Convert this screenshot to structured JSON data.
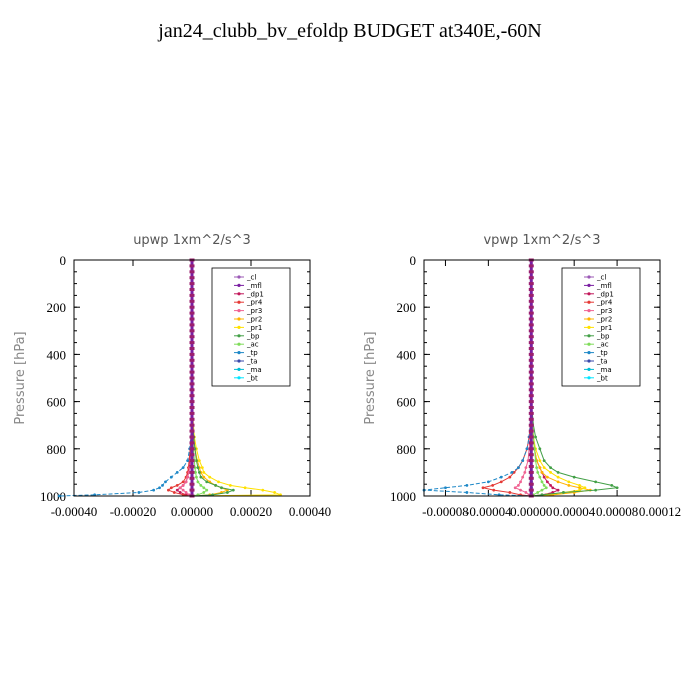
{
  "title": "jan24_clubb_bv_efoldp  BUDGET at340E,-60N",
  "chart_data": [
    {
      "type": "line",
      "title": "upwp   1xm^2/s^3",
      "ylabel": "Pressure [hPa]",
      "xlabel": "",
      "xlim": [
        -0.0004,
        0.0004
      ],
      "ylim": [
        1000,
        0
      ],
      "x_ticks": [
        "-0.00040",
        "-0.00020",
        "0.00000",
        "0.00020",
        "0.00040"
      ],
      "y_ticks": [
        "0",
        "200",
        "400",
        "600",
        "800",
        "1000"
      ],
      "legend": [
        "_cl",
        "_mfl",
        "_dp1",
        "_pr4",
        "_pr3",
        "_pr2",
        "_pr1",
        "_bp",
        "_ac",
        "_tp",
        "_ta",
        "_ma",
        "_bt"
      ],
      "legend_position": "top-right",
      "colors": [
        "#9b59b6",
        "#7a1fa2",
        "#c2185b",
        "#e53935",
        "#f06292",
        "#ffb300",
        "#ffe100",
        "#43a047",
        "#7fdc5a",
        "#1e88c7",
        "#3949ab",
        "#00bcd4",
        "#00e5ff"
      ],
      "pressure": [
        0,
        100,
        200,
        300,
        400,
        500,
        600,
        700,
        750,
        800,
        850,
        880,
        900,
        920,
        940,
        955,
        965,
        975,
        985,
        995,
        1000
      ],
      "series": [
        {
          "name": "_cl",
          "values": [
            0,
            0,
            0,
            0,
            0,
            0,
            0,
            0,
            0,
            0,
            0,
            0,
            0,
            0,
            0,
            0,
            0,
            0,
            0,
            0,
            0
          ]
        },
        {
          "name": "_mfl",
          "values": [
            0,
            0,
            0,
            0,
            0,
            0,
            0,
            0,
            0,
            0,
            0,
            0,
            0,
            0,
            0,
            0,
            0,
            0,
            0,
            0,
            0
          ]
        },
        {
          "name": "_dp1",
          "values": [
            0,
            0,
            0,
            0,
            0,
            0,
            0,
            -2e-06,
            -3e-06,
            -5e-06,
            -8e-06,
            -1e-05,
            -1.2e-05,
            -1.5e-05,
            -2e-05,
            -3e-05,
            -4e-05,
            -5e-05,
            -4e-05,
            -2e-05,
            0
          ]
        },
        {
          "name": "_pr4",
          "values": [
            0,
            0,
            0,
            0,
            0,
            0,
            0,
            -2e-06,
            -4e-06,
            -6e-06,
            -1e-05,
            -1.2e-05,
            -1.5e-05,
            -2e-05,
            -3e-05,
            -5e-05,
            -7e-05,
            -8e-05,
            -6e-05,
            -3e-05,
            0
          ]
        },
        {
          "name": "_pr3",
          "values": [
            0,
            0,
            0,
            0,
            0,
            0,
            0,
            -1e-06,
            -2e-06,
            -3e-06,
            -5e-06,
            -8e-06,
            -1e-05,
            -1.5e-05,
            -2e-05,
            -3e-05,
            -4e-05,
            -3e-05,
            -2e-05,
            -1e-05,
            0
          ]
        },
        {
          "name": "_pr2",
          "values": [
            0,
            0,
            0,
            0,
            0,
            0,
            0,
            3e-06,
            5e-06,
            1e-05,
            1.8e-05,
            2.5e-05,
            3e-05,
            4e-05,
            6e-05,
            8e-05,
            0.0001,
            0.00012,
            0.0001,
            6e-05,
            0
          ]
        },
        {
          "name": "_pr1",
          "values": [
            0,
            0,
            0,
            0,
            0,
            0,
            0,
            5e-06,
            8e-06,
            1.5e-05,
            2.5e-05,
            3.5e-05,
            4e-05,
            6e-05,
            9e-05,
            0.00013,
            0.00018,
            0.00024,
            0.00028,
            0.0003,
            0
          ]
        },
        {
          "name": "_bp",
          "values": [
            0,
            0,
            0,
            0,
            0,
            0,
            0,
            3e-06,
            6e-06,
            1e-05,
            1.5e-05,
            2e-05,
            2.5e-05,
            3e-05,
            5e-05,
            8e-05,
            0.0001,
            0.00014,
            0.00012,
            7e-05,
            0
          ]
        },
        {
          "name": "_ac",
          "values": [
            0,
            0,
            0,
            0,
            0,
            0,
            0,
            2e-06,
            3e-06,
            5e-06,
            8e-06,
            1e-05,
            1.2e-05,
            1.5e-05,
            2e-05,
            3e-05,
            4e-05,
            5e-05,
            4e-05,
            2e-05,
            0
          ]
        },
        {
          "name": "_tp",
          "values": [
            0,
            0,
            0,
            0,
            0,
            0,
            0,
            -2e-06,
            -4e-06,
            -8e-06,
            -1.5e-05,
            -3e-05,
            -5e-05,
            -7e-05,
            -9e-05,
            -0.0001,
            -0.00011,
            -0.00013,
            -0.00018,
            -0.00033,
            -0.00045
          ]
        },
        {
          "name": "_ta",
          "values": [
            0,
            0,
            0,
            0,
            0,
            0,
            0,
            0,
            0,
            0,
            0,
            0,
            0,
            0,
            0,
            0,
            0,
            0,
            0,
            0,
            0
          ]
        },
        {
          "name": "_ma",
          "values": [
            0,
            0,
            0,
            0,
            0,
            0,
            0,
            0,
            0,
            0,
            0,
            0,
            0,
            0,
            0,
            0,
            0,
            0,
            0,
            0,
            0
          ]
        },
        {
          "name": "_bt",
          "values": [
            0,
            0,
            0,
            0,
            0,
            0,
            0,
            0,
            0,
            0,
            0,
            0,
            0,
            0,
            0,
            0,
            0,
            0,
            0,
            0,
            0
          ]
        }
      ]
    },
    {
      "type": "line",
      "title": "vpwp   1xm^2/s^3",
      "ylabel": "Pressure [hPa]",
      "xlabel": "",
      "xlim": [
        -0.0001,
        0.00012
      ],
      "ylim": [
        1000,
        0
      ],
      "x_ticks": [
        "-0.00008",
        "-0.00004",
        "0.00000",
        "0.00004",
        "0.00008",
        "0.00012"
      ],
      "y_ticks": [
        "0",
        "200",
        "400",
        "600",
        "800",
        "1000"
      ],
      "legend": [
        "_cl",
        "_mfl",
        "_dp1",
        "_pr4",
        "_pr3",
        "_pr2",
        "_pr1",
        "_bp",
        "_ac",
        "_tp",
        "_ta",
        "_ma",
        "_bt"
      ],
      "legend_position": "top-right",
      "colors": [
        "#9b59b6",
        "#7a1fa2",
        "#c2185b",
        "#e53935",
        "#f06292",
        "#ffb300",
        "#ffe100",
        "#43a047",
        "#7fdc5a",
        "#1e88c7",
        "#3949ab",
        "#00bcd4",
        "#00e5ff"
      ],
      "pressure": [
        0,
        100,
        200,
        300,
        400,
        500,
        600,
        700,
        750,
        800,
        850,
        880,
        900,
        920,
        940,
        955,
        965,
        975,
        985,
        995,
        1000
      ],
      "series": [
        {
          "name": "_cl",
          "values": [
            0,
            0,
            0,
            0,
            0,
            0,
            0,
            0,
            0,
            0,
            0,
            0,
            0,
            0,
            0,
            0,
            0,
            0,
            0,
            0,
            0
          ]
        },
        {
          "name": "_mfl",
          "values": [
            0,
            0,
            0,
            0,
            0,
            0,
            0,
            0,
            0,
            0,
            0,
            0,
            0,
            0,
            0,
            0,
            0,
            0,
            0,
            0,
            0
          ]
        },
        {
          "name": "_dp1",
          "values": [
            0,
            0,
            0,
            0,
            0,
            0,
            0,
            1e-06,
            2e-06,
            3e-06,
            5e-06,
            8e-06,
            1e-05,
            1.2e-05,
            1.5e-05,
            1.8e-05,
            2e-05,
            2.5e-05,
            2e-05,
            1e-05,
            0
          ]
        },
        {
          "name": "_pr4",
          "values": [
            0,
            0,
            0,
            0,
            0,
            0,
            0,
            -1e-06,
            -2e-06,
            -4e-06,
            -8e-06,
            -1.2e-05,
            -1.6e-05,
            -2e-05,
            -2.8e-05,
            -3.6e-05,
            -4.5e-05,
            -3.5e-05,
            -2e-05,
            -1e-05,
            0
          ]
        },
        {
          "name": "_pr3",
          "values": [
            0,
            0,
            0,
            0,
            0,
            0,
            0,
            0,
            -1e-06,
            -2e-06,
            -3e-06,
            -5e-06,
            -6e-06,
            -8e-06,
            -1e-05,
            -1.2e-05,
            -1.5e-05,
            -1e-05,
            -5e-06,
            -2e-06,
            0
          ]
        },
        {
          "name": "_pr2",
          "values": [
            0,
            0,
            0,
            0,
            0,
            0,
            0,
            1e-06,
            2e-06,
            3e-06,
            5e-06,
            8e-06,
            1e-05,
            1.5e-05,
            2.5e-05,
            3.5e-05,
            4.5e-05,
            5.5e-05,
            4e-05,
            2e-05,
            0
          ]
        },
        {
          "name": "_pr1",
          "values": [
            0,
            0,
            0,
            0,
            0,
            0,
            0,
            1e-06,
            2e-06,
            4e-06,
            8e-06,
            1.2e-05,
            1.8e-05,
            2.5e-05,
            3.5e-05,
            4.5e-05,
            5e-05,
            4.5e-05,
            3e-05,
            1.5e-05,
            0
          ]
        },
        {
          "name": "_bp",
          "values": [
            0,
            0,
            0,
            0,
            0,
            0,
            0,
            2e-06,
            4e-06,
            8e-06,
            1.2e-05,
            1.8e-05,
            2.5e-05,
            4e-05,
            6e-05,
            7.5e-05,
            8e-05,
            6e-05,
            3e-05,
            1e-05,
            0
          ]
        },
        {
          "name": "_ac",
          "values": [
            0,
            0,
            0,
            0,
            0,
            0,
            0,
            1e-06,
            2e-06,
            3e-06,
            4e-06,
            5e-06,
            6e-06,
            8e-06,
            1e-05,
            1.2e-05,
            1.4e-05,
            1e-05,
            6e-06,
            2e-06,
            0
          ]
        },
        {
          "name": "_tp",
          "values": [
            0,
            0,
            0,
            0,
            0,
            0,
            0,
            -1e-06,
            -2e-06,
            -4e-06,
            -8e-06,
            -1.2e-05,
            -1.8e-05,
            -2.8e-05,
            -4e-05,
            -6e-05,
            -8e-05,
            -0.0001,
            -6e-05,
            -3e-05,
            0
          ]
        },
        {
          "name": "_ta",
          "values": [
            0,
            0,
            0,
            0,
            0,
            0,
            0,
            0,
            0,
            0,
            0,
            0,
            0,
            0,
            0,
            0,
            0,
            0,
            0,
            0,
            0
          ]
        },
        {
          "name": "_ma",
          "values": [
            0,
            0,
            0,
            0,
            0,
            0,
            0,
            0,
            0,
            0,
            0,
            0,
            0,
            0,
            0,
            0,
            0,
            0,
            0,
            0,
            0
          ]
        },
        {
          "name": "_bt",
          "values": [
            0,
            0,
            0,
            0,
            0,
            0,
            0,
            0,
            0,
            0,
            0,
            0,
            0,
            0,
            0,
            0,
            0,
            0,
            0,
            0,
            0
          ]
        }
      ]
    }
  ]
}
